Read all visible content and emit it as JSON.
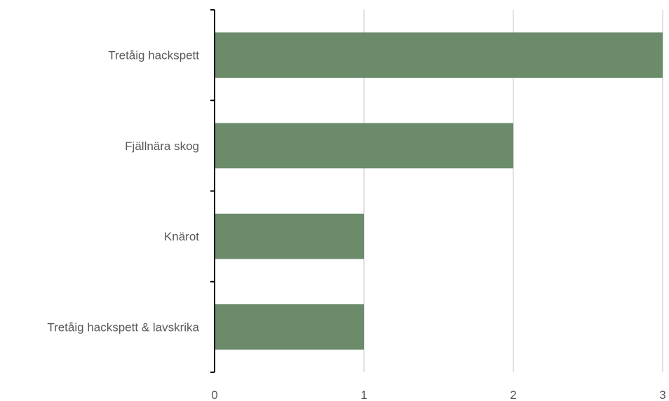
{
  "chart_data": {
    "type": "bar",
    "orientation": "horizontal",
    "categories": [
      "Tretåig hackspett",
      "Fjällnära skog",
      "Knärot",
      "Tretåig hackspett & lavskrika"
    ],
    "values": [
      3,
      2,
      1,
      1
    ],
    "xlim": [
      0,
      3
    ],
    "xticks": [
      "0",
      "1",
      "2",
      "3"
    ],
    "grid": true,
    "legend": "none",
    "bar_color": "#6b8b6b",
    "gridline_color": "#d9d9d9",
    "axis_color": "#000000",
    "label_color": "#595959"
  }
}
